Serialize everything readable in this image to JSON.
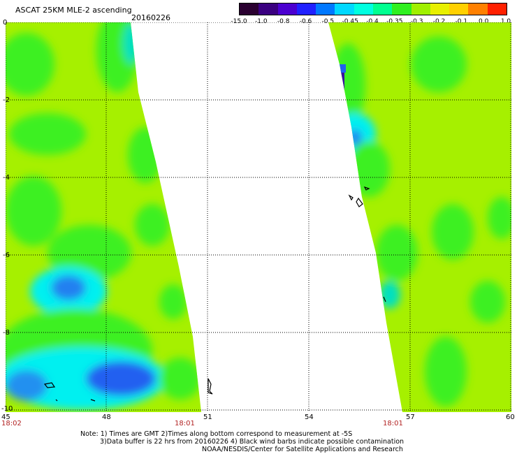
{
  "header": {
    "title": "ASCAT 25KM MLE-2 ascending",
    "date": "20160226"
  },
  "colorbar": {
    "labels": [
      "-15.0",
      "-1.0",
      "-0.8",
      "-0.6",
      "-0.5",
      "-0.45",
      "-0.4",
      "-0.35",
      "-0.3",
      "-0.2",
      "-0.1",
      "0.0",
      "1.0"
    ],
    "colors": [
      "#2a0030",
      "#3a0080",
      "#4b00d0",
      "#2020ff",
      "#0078ff",
      "#00d8ff",
      "#00ffe0",
      "#00ff90",
      "#30f020",
      "#a0f000",
      "#e8f000",
      "#ffd000",
      "#ff8000",
      "#ff2000"
    ]
  },
  "axes": {
    "y_ticks": [
      "0",
      "-2",
      "-4",
      "-6",
      "-8",
      "-10"
    ],
    "x_ticks": [
      "45",
      "48",
      "51",
      "54",
      "57",
      "60"
    ]
  },
  "times": {
    "left_start": "18:02",
    "left_end": "18:01",
    "right_end": "18:01"
  },
  "notes": [
    "Note: 1) Times are GMT 2)Times along bottom correspond to measurement at -5S",
    "3)Data buffer is 22 hrs from 20160226 4) Black wind barbs indicate possible contamination",
    "NOAA/NESDIS/Center for Satellite Applications and Research"
  ],
  "palette": {
    "green_light": "#a6f000",
    "green": "#3df020",
    "cyan": "#00f0f0",
    "blue": "#2060f0",
    "purple": "#3a10a0"
  }
}
